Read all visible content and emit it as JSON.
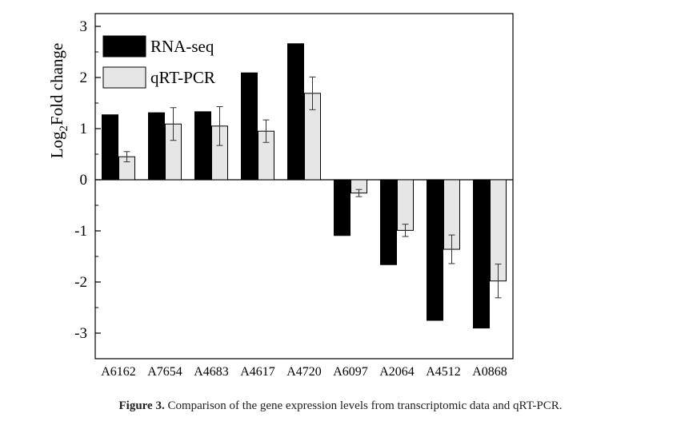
{
  "figure": {
    "caption_label": "Figure 3.",
    "caption_text": " Comparison of the gene expression levels from transcriptomic data and qRT-PCR."
  },
  "chart_data": {
    "type": "bar",
    "categories": [
      "A6162",
      "A7654",
      "A4683",
      "A4617",
      "A4720",
      "A6097",
      "A2064",
      "A4512",
      "A0868"
    ],
    "series": [
      {
        "name": "RNA-seq",
        "color": "#000000",
        "values": [
          1.27,
          1.31,
          1.33,
          2.09,
          2.66,
          -1.09,
          -1.66,
          -2.75,
          -2.9
        ]
      },
      {
        "name": "qRT-PCR",
        "color": "#e6e6e6",
        "values": [
          0.45,
          1.09,
          1.05,
          0.95,
          1.69,
          -0.26,
          -0.99,
          -1.36,
          -1.98
        ],
        "errors": [
          0.1,
          0.32,
          0.38,
          0.22,
          0.32,
          0.07,
          0.12,
          0.28,
          0.33
        ]
      }
    ],
    "ylabel_main": "Log",
    "ylabel_sub": "2",
    "ylabel_rest": "Fold change",
    "ylim": [
      -3.5,
      3.25
    ],
    "yticks": [
      -3,
      -2,
      -1,
      0,
      1,
      2,
      3
    ],
    "legend_position": "top-left"
  }
}
